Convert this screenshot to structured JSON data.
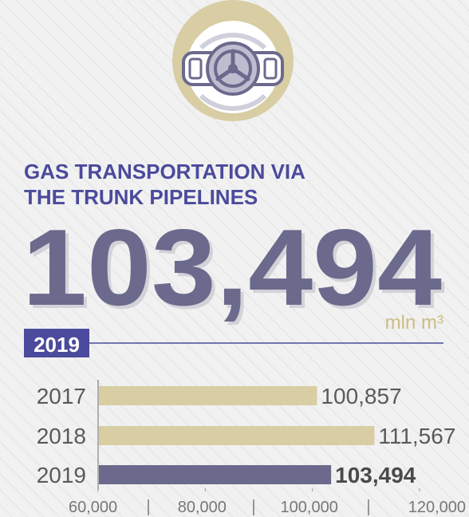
{
  "header": {
    "title": [
      "GAS TRANSPORTATION VIA",
      "THE TRUNK PIPELINES"
    ],
    "headline_value": "103,494",
    "unit": "mln m³",
    "year": "2019"
  },
  "chart_data": {
    "type": "bar",
    "orientation": "horizontal",
    "categories": [
      "2017",
      "2018",
      "2019"
    ],
    "values": [
      100857,
      111567,
      103494
    ],
    "value_labels": [
      "100,857",
      "111,567",
      "103,494"
    ],
    "colors": [
      "#d8cda3",
      "#d8cda3",
      "#6b6a8d"
    ],
    "xlim": [
      60000,
      120000
    ],
    "xticks": [
      {
        "value": 60000,
        "label": "60,000"
      },
      {
        "value": 80000,
        "label": "80,000"
      },
      {
        "value": 100000,
        "label": "100,000"
      },
      {
        "value": 120000,
        "label": "120,000"
      }
    ]
  }
}
